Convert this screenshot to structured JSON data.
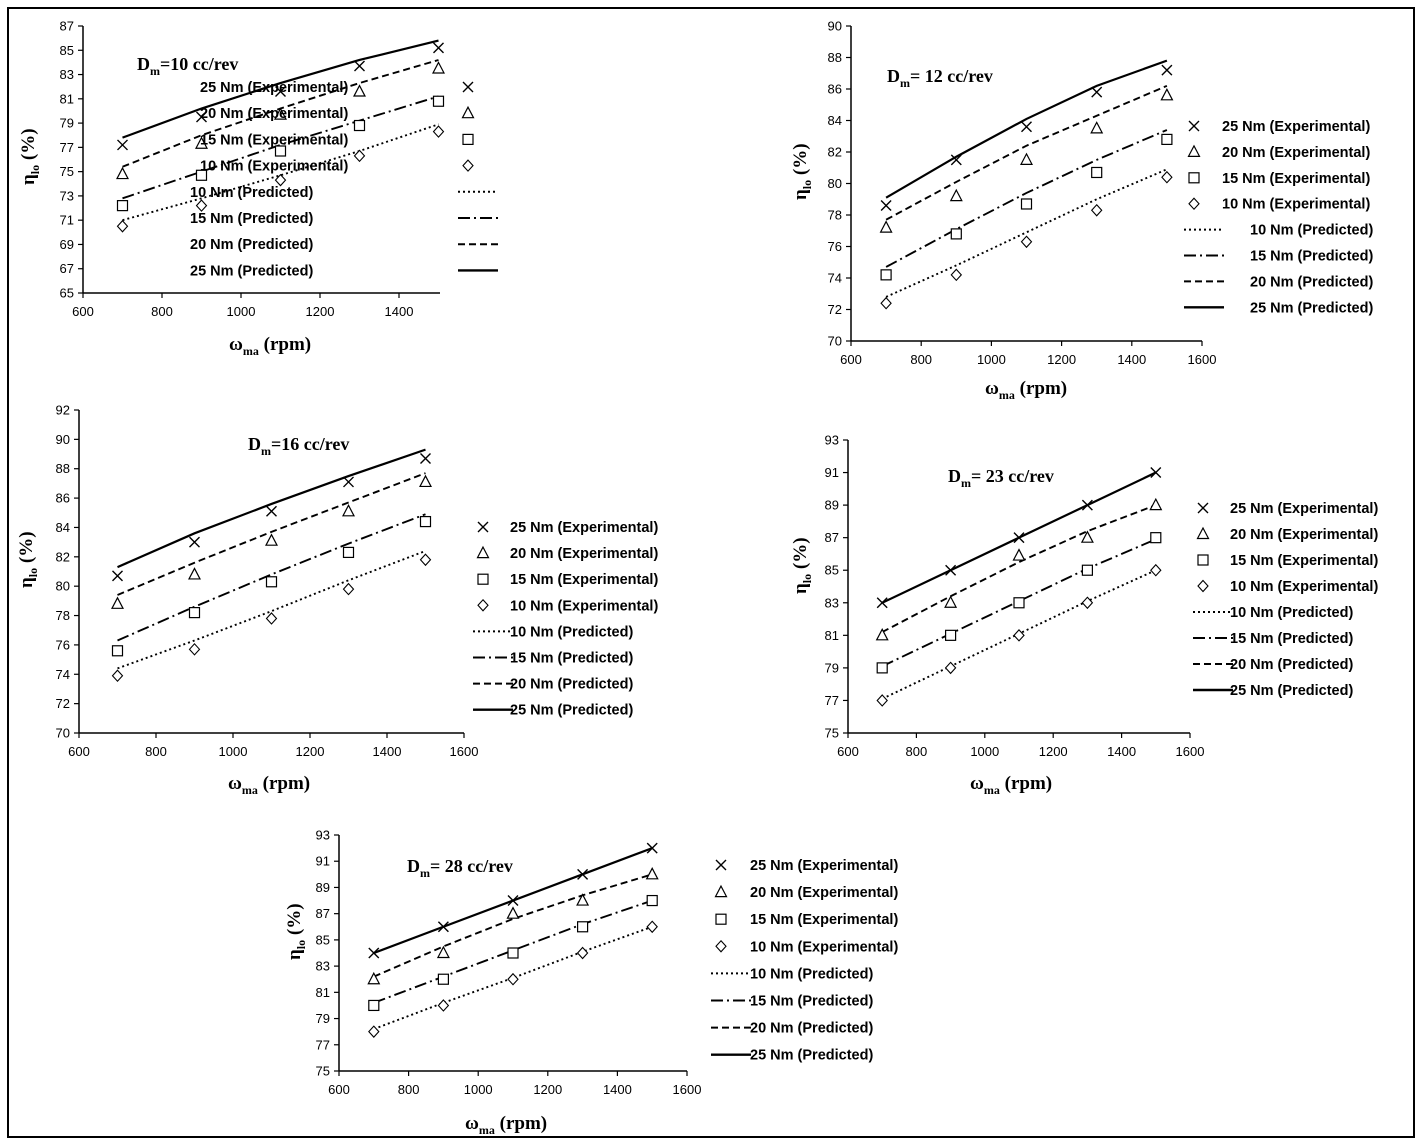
{
  "x_label": "ω",
  "x_label_sub": "ma",
  "x_label_unit": "(rpm)",
  "y_label": "η",
  "y_label_sub": "lo",
  "y_label_unit": "(%)",
  "title_prefix": "D",
  "title_prefix_sub": "m",
  "chart_data": [
    {
      "type": "line",
      "title": "Dm=10 cc/rev",
      "title_rest": "=10 cc/rev",
      "x": [
        700,
        900,
        1100,
        1300,
        1500
      ],
      "xlim": [
        600,
        1500
      ],
      "xticks": [
        600,
        800,
        1000,
        1200,
        1400
      ],
      "ylim": [
        65,
        87
      ],
      "yticks": [
        65,
        67,
        69,
        71,
        73,
        75,
        77,
        79,
        81,
        83,
        85,
        87
      ],
      "series": [
        {
          "name": "25 Nm  (Experimental)",
          "marker": "x",
          "values": [
            77.2,
            79.5,
            81.6,
            83.7,
            85.2
          ]
        },
        {
          "name": "20 Nm  (Experimental)",
          "marker": "triangle",
          "values": [
            74.8,
            77.3,
            79.7,
            81.6,
            83.5
          ]
        },
        {
          "name": "15 Nm  (Experimental)",
          "marker": "square",
          "values": [
            72.2,
            74.7,
            76.7,
            78.8,
            80.8
          ]
        },
        {
          "name": "10 Nm  (Experimental)",
          "marker": "diamond",
          "values": [
            70.5,
            72.2,
            74.3,
            76.3,
            78.3
          ]
        },
        {
          "name": "10 Nm (Predicted)",
          "style": "dotted",
          "values": [
            71.0,
            72.8,
            74.7,
            76.7,
            78.9
          ]
        },
        {
          "name": "15 Nm (Predicted)",
          "style": "dashdot",
          "values": [
            72.8,
            75.0,
            77.2,
            79.2,
            81.2
          ]
        },
        {
          "name": "20 Nm (Predicted)",
          "style": "dashed",
          "values": [
            75.4,
            78.0,
            80.2,
            82.3,
            84.2
          ]
        },
        {
          "name": "25 Nm (Predicted)",
          "style": "solid",
          "values": [
            77.8,
            80.2,
            82.3,
            84.2,
            85.8
          ]
        }
      ]
    },
    {
      "type": "line",
      "title": "Dm= 12 cc/rev",
      "title_rest": "= 12 cc/rev",
      "x": [
        700,
        900,
        1100,
        1300,
        1500
      ],
      "xlim": [
        600,
        1600
      ],
      "xticks": [
        600,
        800,
        1000,
        1200,
        1400,
        1600
      ],
      "ylim": [
        70,
        90
      ],
      "yticks": [
        70,
        72,
        74,
        76,
        78,
        80,
        82,
        84,
        86,
        88,
        90
      ],
      "series": [
        {
          "name": "25 Nm (Experimental)",
          "marker": "x",
          "values": [
            78.6,
            81.5,
            83.6,
            85.8,
            87.2
          ]
        },
        {
          "name": "20 Nm (Experimental)",
          "marker": "triangle",
          "values": [
            77.2,
            79.2,
            81.5,
            83.5,
            85.6
          ]
        },
        {
          "name": "15 Nm (Experimental)",
          "marker": "square",
          "values": [
            74.2,
            76.8,
            78.7,
            80.7,
            82.8
          ]
        },
        {
          "name": "10 Nm (Experimental)",
          "marker": "diamond",
          "values": [
            72.4,
            74.2,
            76.3,
            78.3,
            80.4
          ]
        },
        {
          "name": "10 Nm (Predicted)",
          "style": "dotted",
          "values": [
            72.8,
            74.8,
            76.9,
            79.0,
            80.9
          ]
        },
        {
          "name": "15 Nm (Predicted)",
          "style": "dashdot",
          "values": [
            74.7,
            77.1,
            79.4,
            81.5,
            83.4
          ]
        },
        {
          "name": "20 Nm (Predicted)",
          "style": "dashed",
          "values": [
            77.7,
            80.1,
            82.4,
            84.3,
            86.2
          ]
        },
        {
          "name": "25 Nm (Predicted)",
          "style": "solid",
          "values": [
            79.1,
            81.7,
            84.1,
            86.2,
            87.8
          ]
        }
      ]
    },
    {
      "type": "line",
      "title": "Dm=16 cc/rev",
      "title_rest": "=16 cc/rev",
      "x": [
        700,
        900,
        1100,
        1300,
        1500
      ],
      "xlim": [
        600,
        1600
      ],
      "xticks": [
        600,
        800,
        1000,
        1200,
        1400,
        1600
      ],
      "ylim": [
        70,
        92
      ],
      "yticks": [
        70,
        72,
        74,
        76,
        78,
        80,
        82,
        84,
        86,
        88,
        90,
        92
      ],
      "series": [
        {
          "name": "25 Nm (Experimental)",
          "marker": "x",
          "values": [
            80.7,
            83.0,
            85.1,
            87.1,
            88.7
          ]
        },
        {
          "name": "20  Nm (Experimental)",
          "marker": "triangle",
          "values": [
            78.8,
            80.8,
            83.1,
            85.1,
            87.1
          ]
        },
        {
          "name": "15  Nm (Experimental)",
          "marker": "square",
          "values": [
            75.6,
            78.2,
            80.3,
            82.3,
            84.4
          ]
        },
        {
          "name": "10  Nm (Experimental)",
          "marker": "diamond",
          "values": [
            73.9,
            75.7,
            77.8,
            79.8,
            81.8
          ]
        },
        {
          "name": "10 Nm (Predicted)",
          "style": "dotted",
          "values": [
            74.4,
            76.3,
            78.3,
            80.4,
            82.4
          ]
        },
        {
          "name": "15 Nm (Predicted)",
          "style": "dashdot",
          "values": [
            76.3,
            78.6,
            80.8,
            82.9,
            84.9
          ]
        },
        {
          "name": "20 Nm (Predicted)",
          "style": "dashed",
          "values": [
            79.4,
            81.6,
            83.7,
            85.7,
            87.7
          ]
        },
        {
          "name": "25 Nm (Predicted)",
          "style": "solid",
          "values": [
            81.3,
            83.6,
            85.6,
            87.5,
            89.3
          ]
        }
      ]
    },
    {
      "type": "line",
      "title": "Dm= 23 cc/rev",
      "title_rest": "= 23 cc/rev",
      "x": [
        700,
        900,
        1100,
        1300,
        1500
      ],
      "xlim": [
        600,
        1600
      ],
      "xticks": [
        600,
        800,
        1000,
        1200,
        1400,
        1600
      ],
      "ylim": [
        75,
        93
      ],
      "yticks": [
        75,
        77,
        79,
        81,
        83,
        85,
        87,
        89,
        91,
        93
      ],
      "series": [
        {
          "name": "25 Nm (Experimental)",
          "marker": "x",
          "values": [
            83.0,
            85.0,
            87.0,
            89.0,
            91.0
          ]
        },
        {
          "name": "20 Nm (Experimental)",
          "marker": "triangle",
          "values": [
            81.0,
            83.0,
            85.9,
            87.0,
            89.0
          ]
        },
        {
          "name": "15 Nm (Experimental)",
          "marker": "square",
          "values": [
            79.0,
            81.0,
            83.0,
            85.0,
            87.0
          ]
        },
        {
          "name": "10 Nm (Experimental)",
          "marker": "diamond",
          "values": [
            77.0,
            79.0,
            81.0,
            83.0,
            85.0
          ]
        },
        {
          "name": "10 Nm (Predicted)",
          "style": "dotted",
          "values": [
            77.1,
            79.1,
            81.1,
            83.1,
            85.0
          ]
        },
        {
          "name": "15 Nm (Predicted)",
          "style": "dashdot",
          "values": [
            79.1,
            81.1,
            83.1,
            85.1,
            86.9
          ]
        },
        {
          "name": "20 Nm (Predicted)",
          "style": "dashed",
          "values": [
            81.2,
            83.4,
            85.5,
            87.4,
            89.0
          ]
        },
        {
          "name": "25 Nm (Predicted)",
          "style": "solid",
          "values": [
            83.0,
            85.0,
            87.0,
            89.0,
            91.0
          ]
        }
      ]
    },
    {
      "type": "line",
      "title": "Dm= 28 cc/rev",
      "title_rest": "= 28 cc/rev",
      "x": [
        700,
        900,
        1100,
        1300,
        1500
      ],
      "xlim": [
        600,
        1600
      ],
      "xticks": [
        600,
        800,
        1000,
        1200,
        1400,
        1600
      ],
      "ylim": [
        75,
        93
      ],
      "yticks": [
        75,
        77,
        79,
        81,
        83,
        85,
        87,
        89,
        91,
        93
      ],
      "series": [
        {
          "name": "25 Nm (Experimental)",
          "marker": "x",
          "values": [
            84.0,
            86.0,
            88.0,
            90.0,
            92.0
          ]
        },
        {
          "name": "20 Nm (Experimental)",
          "marker": "triangle",
          "values": [
            82.0,
            84.0,
            87.0,
            88.0,
            90.0
          ]
        },
        {
          "name": "15 Nm (Experimental)",
          "marker": "square",
          "values": [
            80.0,
            82.0,
            84.0,
            86.0,
            88.0
          ]
        },
        {
          "name": "10  Nm (Experimental)",
          "marker": "diamond",
          "values": [
            78.0,
            80.0,
            82.0,
            84.0,
            86.0
          ]
        },
        {
          "name": "10 Nm (Predicted)",
          "style": "dotted",
          "values": [
            78.2,
            80.2,
            82.1,
            84.1,
            86.0
          ]
        },
        {
          "name": "15 Nm (Predicted)",
          "style": "dashdot",
          "values": [
            80.2,
            82.2,
            84.2,
            86.2,
            88.0
          ]
        },
        {
          "name": "20 Nm (Predicted)",
          "style": "dashed",
          "values": [
            82.2,
            84.5,
            86.6,
            88.4,
            90.0
          ]
        },
        {
          "name": "25 Nm (Predicted)",
          "style": "solid",
          "values": [
            84.0,
            86.0,
            88.0,
            90.0,
            92.0
          ]
        }
      ]
    }
  ]
}
